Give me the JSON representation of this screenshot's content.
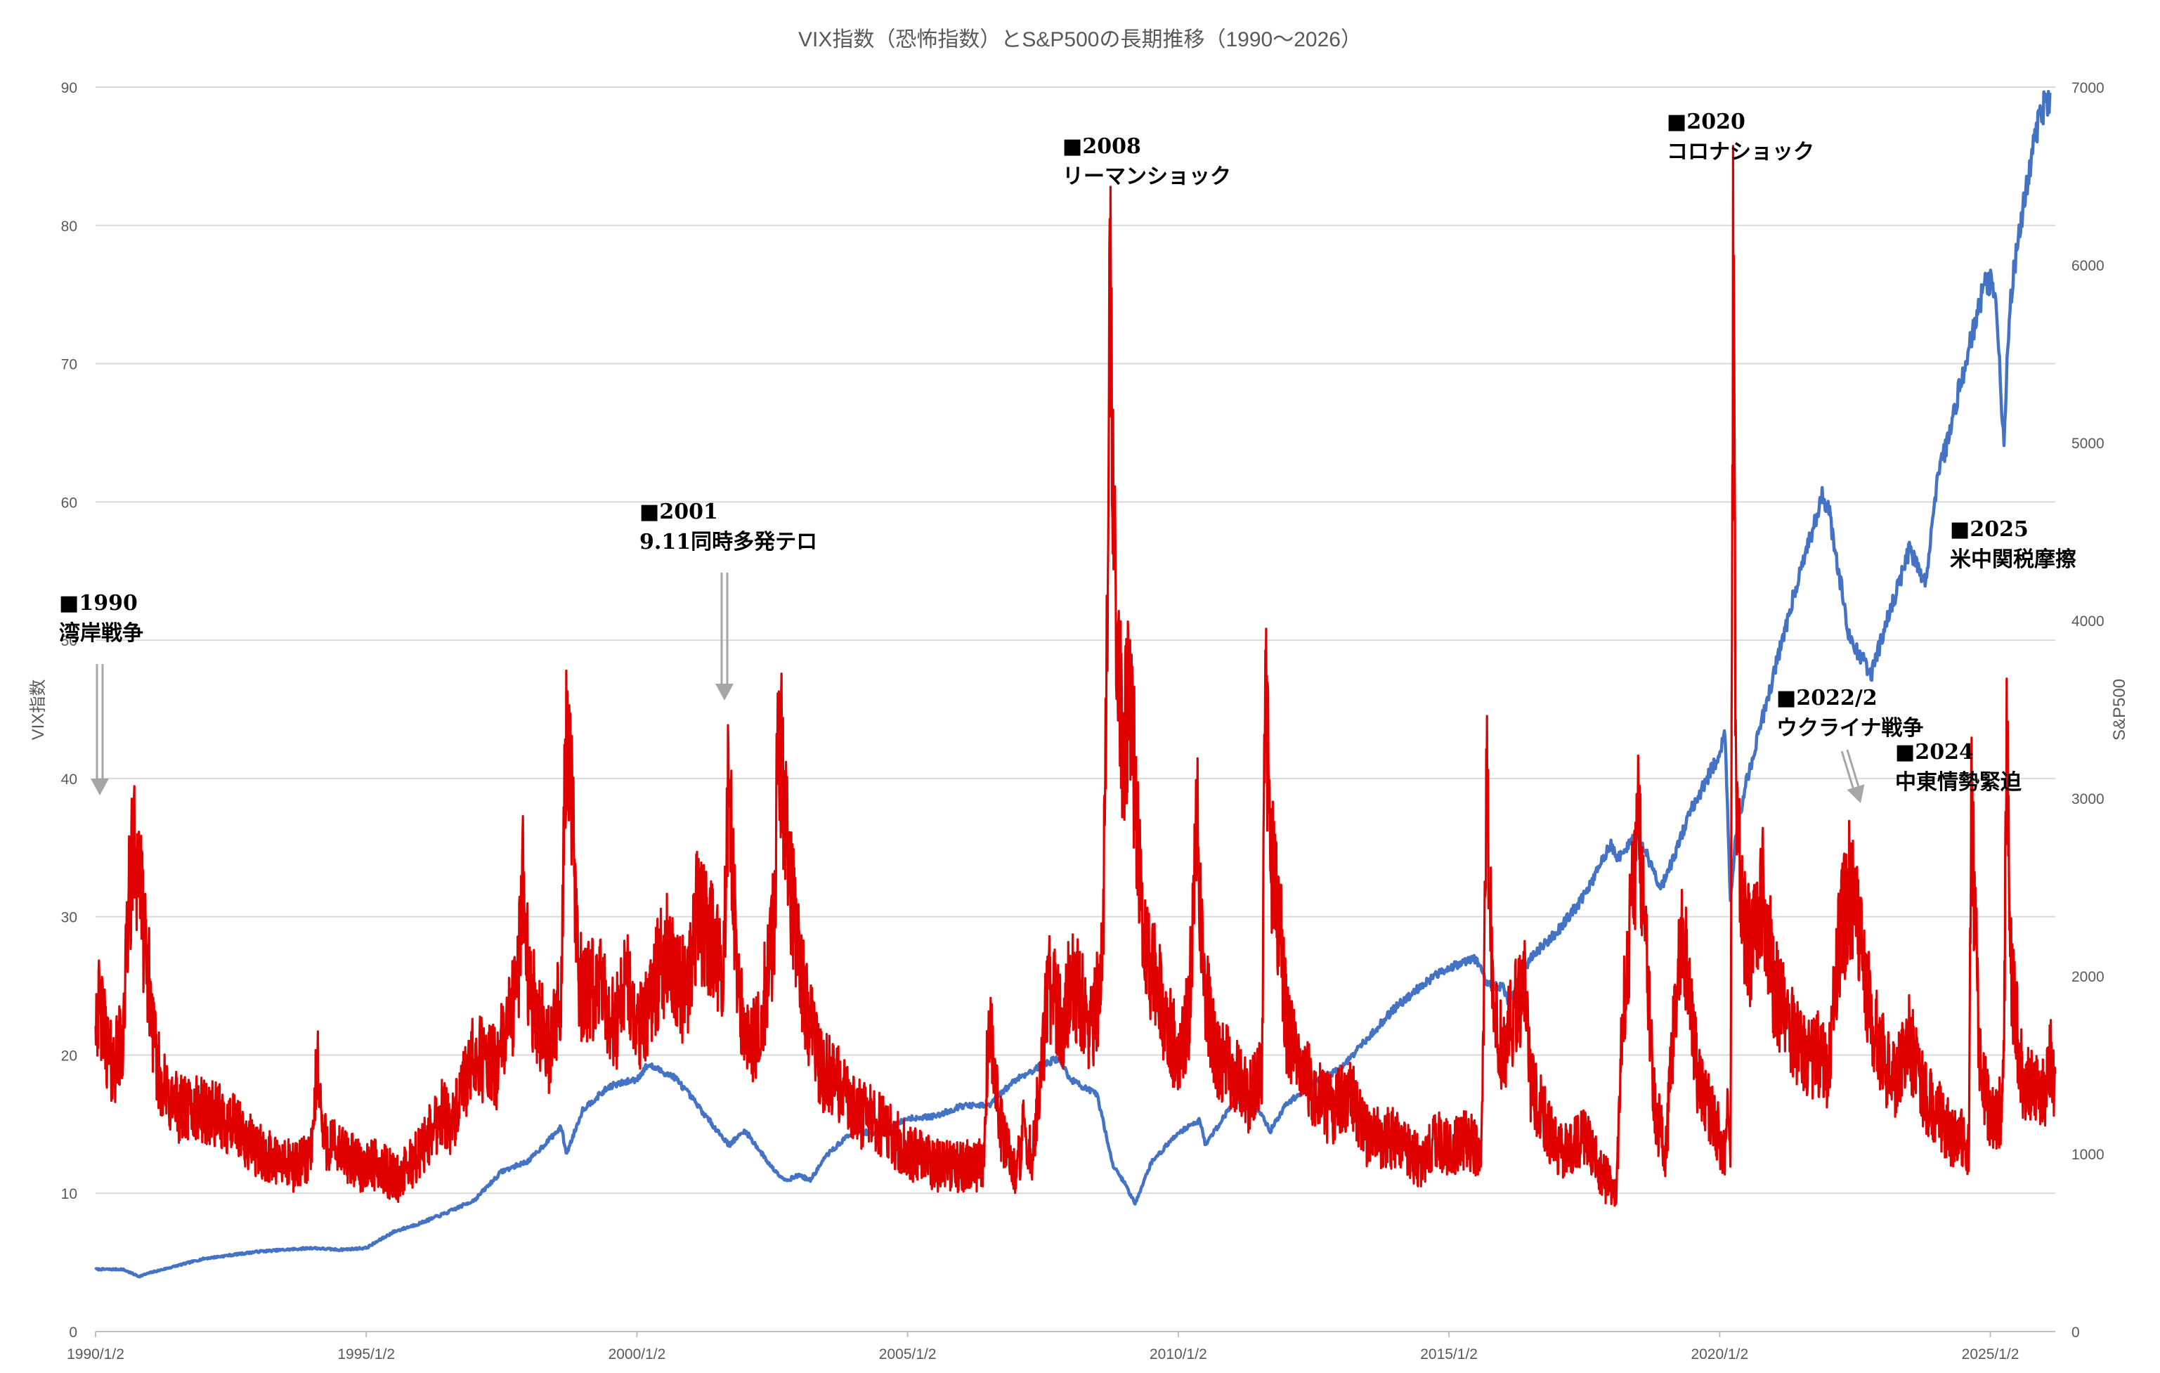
{
  "chart_data": {
    "type": "line",
    "title": "VIX指数（恐怖指数）とS&P500の長期推移（1990〜2026）",
    "ylabel_left": "VIX指数",
    "ylabel_right": "S&P500",
    "ylim_left": [
      0,
      90
    ],
    "ylim_right": [
      0,
      7000
    ],
    "xlim": [
      1990.0,
      2026.2
    ],
    "grid": "horizontal",
    "left_ticks": [
      "0",
      "10",
      "20",
      "30",
      "40",
      "50",
      "60",
      "70",
      "80",
      "90"
    ],
    "right_ticks": [
      "0",
      "1000",
      "2000",
      "3000",
      "4000",
      "5000",
      "6000",
      "7000"
    ],
    "x_ticks": [
      {
        "x": 1990.0,
        "label": "1990/1/2"
      },
      {
        "x": 1995.0,
        "label": "1995/1/2"
      },
      {
        "x": 2000.0,
        "label": "2000/1/2"
      },
      {
        "x": 2005.0,
        "label": "2005/1/2"
      },
      {
        "x": 2010.0,
        "label": "2010/1/2"
      },
      {
        "x": 2015.0,
        "label": "2015/1/2"
      },
      {
        "x": 2020.0,
        "label": "2020/1/2"
      },
      {
        "x": 2025.0,
        "label": "2025/1/2"
      }
    ],
    "series": [
      {
        "name": "VIX指数",
        "axis": "left",
        "color": "#e00000",
        "x": [
          1990.0,
          1990.15,
          1990.3,
          1990.5,
          1990.6,
          1990.7,
          1990.8,
          1990.9,
          1991.0,
          1991.1,
          1991.3,
          1991.6,
          1992.0,
          1992.5,
          1993.0,
          1993.5,
          1993.8,
          1994.0,
          1994.1,
          1994.2,
          1994.5,
          1994.9,
          1995.2,
          1995.6,
          1996.0,
          1996.4,
          1996.6,
          1997.0,
          1997.4,
          1997.8,
          1997.9,
          1998.0,
          1998.4,
          1998.6,
          1998.7,
          1998.8,
          1998.9,
          1999.0,
          1999.3,
          1999.6,
          1999.8,
          2000.0,
          2000.3,
          2000.6,
          2000.9,
          2001.1,
          2001.4,
          2001.6,
          2001.7,
          2001.8,
          2001.9,
          2002.1,
          2002.4,
          2002.55,
          2002.6,
          2002.7,
          2002.8,
          2002.9,
          2003.0,
          2003.2,
          2003.4,
          2003.7,
          2004.0,
          2004.5,
          2005.0,
          2005.5,
          2006.0,
          2006.4,
          2006.5,
          2006.7,
          2007.0,
          2007.15,
          2007.3,
          2007.6,
          2007.7,
          2007.9,
          2008.0,
          2008.2,
          2008.4,
          2008.6,
          2008.7,
          2008.75,
          2008.8,
          2008.85,
          2008.9,
          2008.95,
          2009.0,
          2009.1,
          2009.2,
          2009.3,
          2009.4,
          2009.6,
          2009.8,
          2010.0,
          2010.2,
          2010.35,
          2010.4,
          2010.5,
          2010.7,
          2011.0,
          2011.3,
          2011.55,
          2011.6,
          2011.7,
          2011.8,
          2011.9,
          2012.0,
          2012.4,
          2012.8,
          2013.2,
          2013.5,
          2014.0,
          2014.5,
          2014.8,
          2015.0,
          2015.3,
          2015.6,
          2015.65,
          2015.7,
          2015.8,
          2016.0,
          2016.1,
          2016.4,
          2016.5,
          2016.8,
          2017.0,
          2017.5,
          2017.9,
          2018.05,
          2018.1,
          2018.2,
          2018.5,
          2018.8,
          2018.95,
          2019.0,
          2019.3,
          2019.6,
          2019.9,
          2020.1,
          2020.15,
          2020.2,
          2020.25,
          2020.3,
          2020.4,
          2020.6,
          2020.8,
          2021.0,
          2021.3,
          2021.6,
          2021.9,
          2022.0,
          2022.2,
          2022.4,
          2022.6,
          2022.8,
          2023.0,
          2023.2,
          2023.5,
          2023.8,
          2024.0,
          2024.3,
          2024.55,
          2024.6,
          2024.65,
          2024.8,
          2025.0,
          2025.2,
          2025.25,
          2025.3,
          2025.4,
          2025.6,
          2025.8,
          2026.0,
          2026.1,
          2026.2
        ],
        "values": [
          24,
          22,
          19,
          21,
          30,
          35,
          34,
          28,
          25,
          20,
          17,
          16,
          16,
          15,
          13,
          12,
          12,
          13,
          20,
          14,
          13,
          12,
          12,
          11,
          13,
          16,
          15,
          20,
          19,
          25,
          34,
          25,
          20,
          25,
          45,
          38,
          27,
          24,
          25,
          22,
          26,
          21,
          25,
          28,
          24,
          30,
          28,
          25,
          42,
          30,
          24,
          20,
          25,
          30,
          45,
          40,
          33,
          30,
          27,
          22,
          19,
          18,
          16,
          15,
          13,
          12,
          12,
          12,
          23,
          15,
          11,
          15,
          12,
          25,
          24,
          22,
          26,
          24,
          22,
          26,
          55,
          80,
          60,
          52,
          50,
          44,
          43,
          45,
          40,
          32,
          28,
          25,
          22,
          20,
          23,
          38,
          30,
          25,
          20,
          19,
          17,
          19,
          48,
          35,
          32,
          28,
          22,
          18,
          16,
          17,
          14,
          14,
          12,
          14,
          13,
          14,
          13,
          25,
          40,
          25,
          20,
          22,
          25,
          18,
          15,
          13,
          14,
          11,
          10,
          10,
          22,
          37,
          16,
          14,
          13,
          30,
          18,
          15,
          13,
          17,
          14,
          82,
          40,
          30,
          27,
          32,
          25,
          22,
          20,
          20,
          18,
          28,
          32,
          28,
          23,
          20,
          18,
          21,
          17,
          16,
          14,
          14,
          13,
          38,
          20,
          15,
          16,
          20,
          42,
          25,
          18,
          18,
          17,
          20,
          18
        ],
        "x_labels": "years"
      },
      {
        "name": "S&P500",
        "axis": "right",
        "color": "#4472c4",
        "x": [
          1990.0,
          1990.5,
          1990.8,
          1991.0,
          1992.0,
          1993.0,
          1994.0,
          1994.5,
          1995.0,
          1995.5,
          1996.0,
          1996.5,
          1997.0,
          1997.5,
          1998.0,
          1998.6,
          1998.7,
          1999.0,
          1999.5,
          2000.0,
          2000.2,
          2000.7,
          2001.0,
          2001.3,
          2001.7,
          2002.0,
          2002.5,
          2002.75,
          2003.0,
          2003.2,
          2003.5,
          2004.0,
          2004.5,
          2005.0,
          2005.5,
          2006.0,
          2006.5,
          2007.0,
          2007.5,
          2007.8,
          2008.0,
          2008.5,
          2008.8,
          2009.0,
          2009.2,
          2009.5,
          2010.0,
          2010.4,
          2010.5,
          2011.0,
          2011.3,
          2011.7,
          2012.0,
          2012.5,
          2013.0,
          2013.5,
          2014.0,
          2014.5,
          2015.0,
          2015.5,
          2015.7,
          2016.0,
          2016.1,
          2016.5,
          2017.0,
          2017.5,
          2018.0,
          2018.1,
          2018.5,
          2018.9,
          2019.0,
          2019.5,
          2020.0,
          2020.1,
          2020.2,
          2020.3,
          2020.5,
          2021.0,
          2021.5,
          2021.9,
          2022.0,
          2022.4,
          2022.8,
          2023.0,
          2023.5,
          2023.8,
          2024.0,
          2024.5,
          2024.9,
          2025.0,
          2025.1,
          2025.25,
          2025.3,
          2025.4,
          2025.6,
          2025.8,
          2026.0,
          2026.1
        ],
        "values": [
          350,
          350,
          310,
          330,
          410,
          450,
          470,
          460,
          470,
          560,
          610,
          670,
          740,
          900,
          960,
          1150,
          1000,
          1250,
          1380,
          1420,
          1500,
          1430,
          1320,
          1200,
          1050,
          1130,
          920,
          850,
          880,
          850,
          990,
          1130,
          1110,
          1200,
          1210,
          1270,
          1270,
          1420,
          1500,
          1540,
          1420,
          1330,
          930,
          840,
          720,
          950,
          1120,
          1190,
          1050,
          1280,
          1340,
          1130,
          1280,
          1400,
          1480,
          1650,
          1820,
          1950,
          2050,
          2100,
          1950,
          1940,
          1850,
          2100,
          2250,
          2450,
          2750,
          2650,
          2800,
          2500,
          2550,
          2950,
          3250,
          3350,
          2400,
          2800,
          3100,
          3700,
          4300,
          4700,
          4650,
          3900,
          3700,
          3900,
          4400,
          4200,
          4750,
          5400,
          5900,
          5900,
          5800,
          5000,
          5400,
          5900,
          6300,
          6700,
          6900,
          6900
        ]
      }
    ],
    "annotations": [
      {
        "line1": "■1990",
        "line2": "湾岸戦争"
      },
      {
        "line1": "■2001",
        "line2": "9.11同時多発テロ"
      },
      {
        "line1": "■2008",
        "line2": "リーマンショック"
      },
      {
        "line1": "■2020",
        "line2": "コロナショック"
      },
      {
        "line1": "■2022/2",
        "line2": "ウクライナ戦争"
      },
      {
        "line1": "■2024",
        "line2": "中東情勢緊迫"
      },
      {
        "line1": "■2025",
        "line2": "米中関税摩擦"
      }
    ]
  }
}
